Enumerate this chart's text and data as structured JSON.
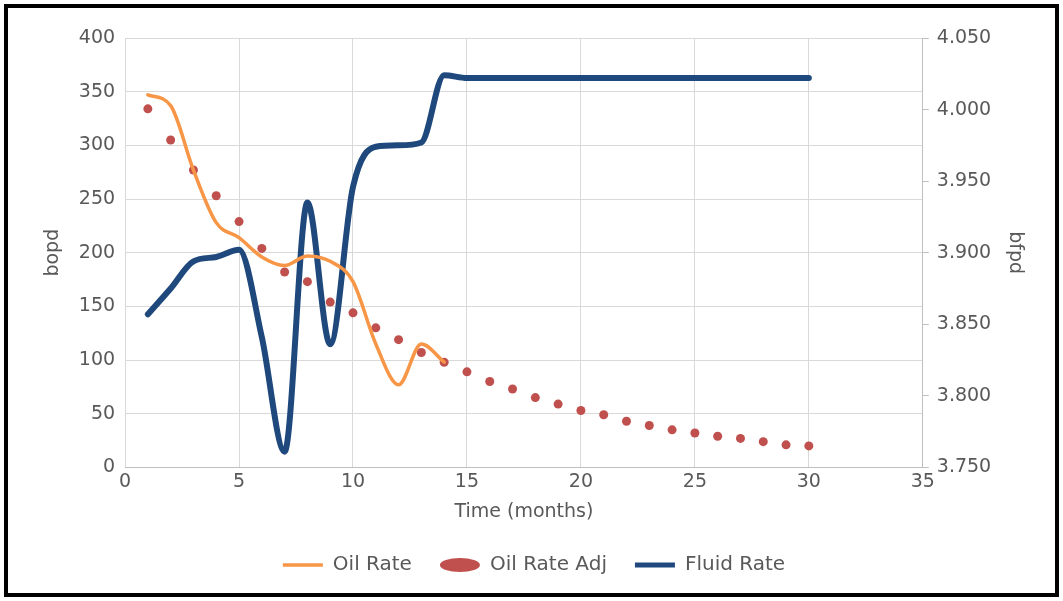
{
  "chart_data": {
    "type": "line",
    "xlabel": "Time (months)",
    "ylabel": "bopd",
    "y2label": "bfpd",
    "xlim": [
      0,
      35
    ],
    "xticks": [
      0,
      5,
      10,
      15,
      20,
      25,
      30,
      35
    ],
    "ylim": [
      0,
      400
    ],
    "yticks": [
      0,
      50,
      100,
      150,
      200,
      250,
      300,
      350,
      400
    ],
    "y2lim": [
      3.75,
      4.05
    ],
    "y2ticks": [
      {
        "value": 3.75,
        "label": "3.750"
      },
      {
        "value": 3.8,
        "label": "3.800"
      },
      {
        "value": 3.85,
        "label": "3.850"
      },
      {
        "value": 3.9,
        "label": "3.900"
      },
      {
        "value": 3.95,
        "label": "3.950"
      },
      {
        "value": 4.0,
        "label": "4.000"
      },
      {
        "value": 4.05,
        "label": "4.050"
      }
    ],
    "grid": true,
    "legend": "bottom",
    "series": [
      {
        "name": "Oil Rate",
        "color": "#f79646",
        "x": [
          1,
          2,
          3,
          4,
          5,
          6,
          7,
          8,
          9,
          10,
          11,
          12,
          13,
          14
        ],
        "values": [
          347,
          337,
          277,
          228,
          214,
          196,
          188,
          197,
          192,
          173,
          115,
          77,
          115,
          98
        ]
      },
      {
        "name": "Oil Rate Adj",
        "type": "scatter",
        "marker": "circle",
        "color": "#c0504d",
        "x": [
          1,
          2,
          3,
          4,
          5,
          6,
          7,
          8,
          9,
          10,
          11,
          12,
          13,
          14,
          15,
          16,
          17,
          18,
          19,
          20,
          21,
          22,
          23,
          24,
          25,
          26,
          27,
          28,
          29,
          30
        ],
        "values": [
          334,
          305,
          277,
          253,
          229,
          204,
          182,
          173,
          154,
          144,
          130,
          119,
          107,
          98,
          89,
          80,
          73,
          65,
          59,
          53,
          49,
          43,
          39,
          35,
          32,
          29,
          27,
          24,
          21,
          20
        ]
      },
      {
        "name": "Fluid Rate",
        "axis": "y2",
        "color": "#1f497d",
        "x": [
          1,
          2,
          3,
          4,
          5,
          6,
          7,
          8,
          9,
          10,
          11,
          12,
          13,
          14,
          15,
          16,
          17,
          18,
          19,
          20,
          21,
          22,
          23,
          24,
          25,
          26,
          27,
          28,
          29,
          30
        ],
        "values": [
          3.857,
          3.875,
          3.894,
          3.897,
          3.902,
          3.841,
          3.761,
          3.935,
          3.836,
          3.946,
          3.974,
          3.975,
          3.977,
          4.024,
          4.022,
          4.022,
          4.022,
          4.022,
          4.022,
          4.022,
          4.022,
          4.022,
          4.022,
          4.022,
          4.022,
          4.022,
          4.022,
          4.022,
          4.022,
          4.022
        ]
      }
    ]
  }
}
